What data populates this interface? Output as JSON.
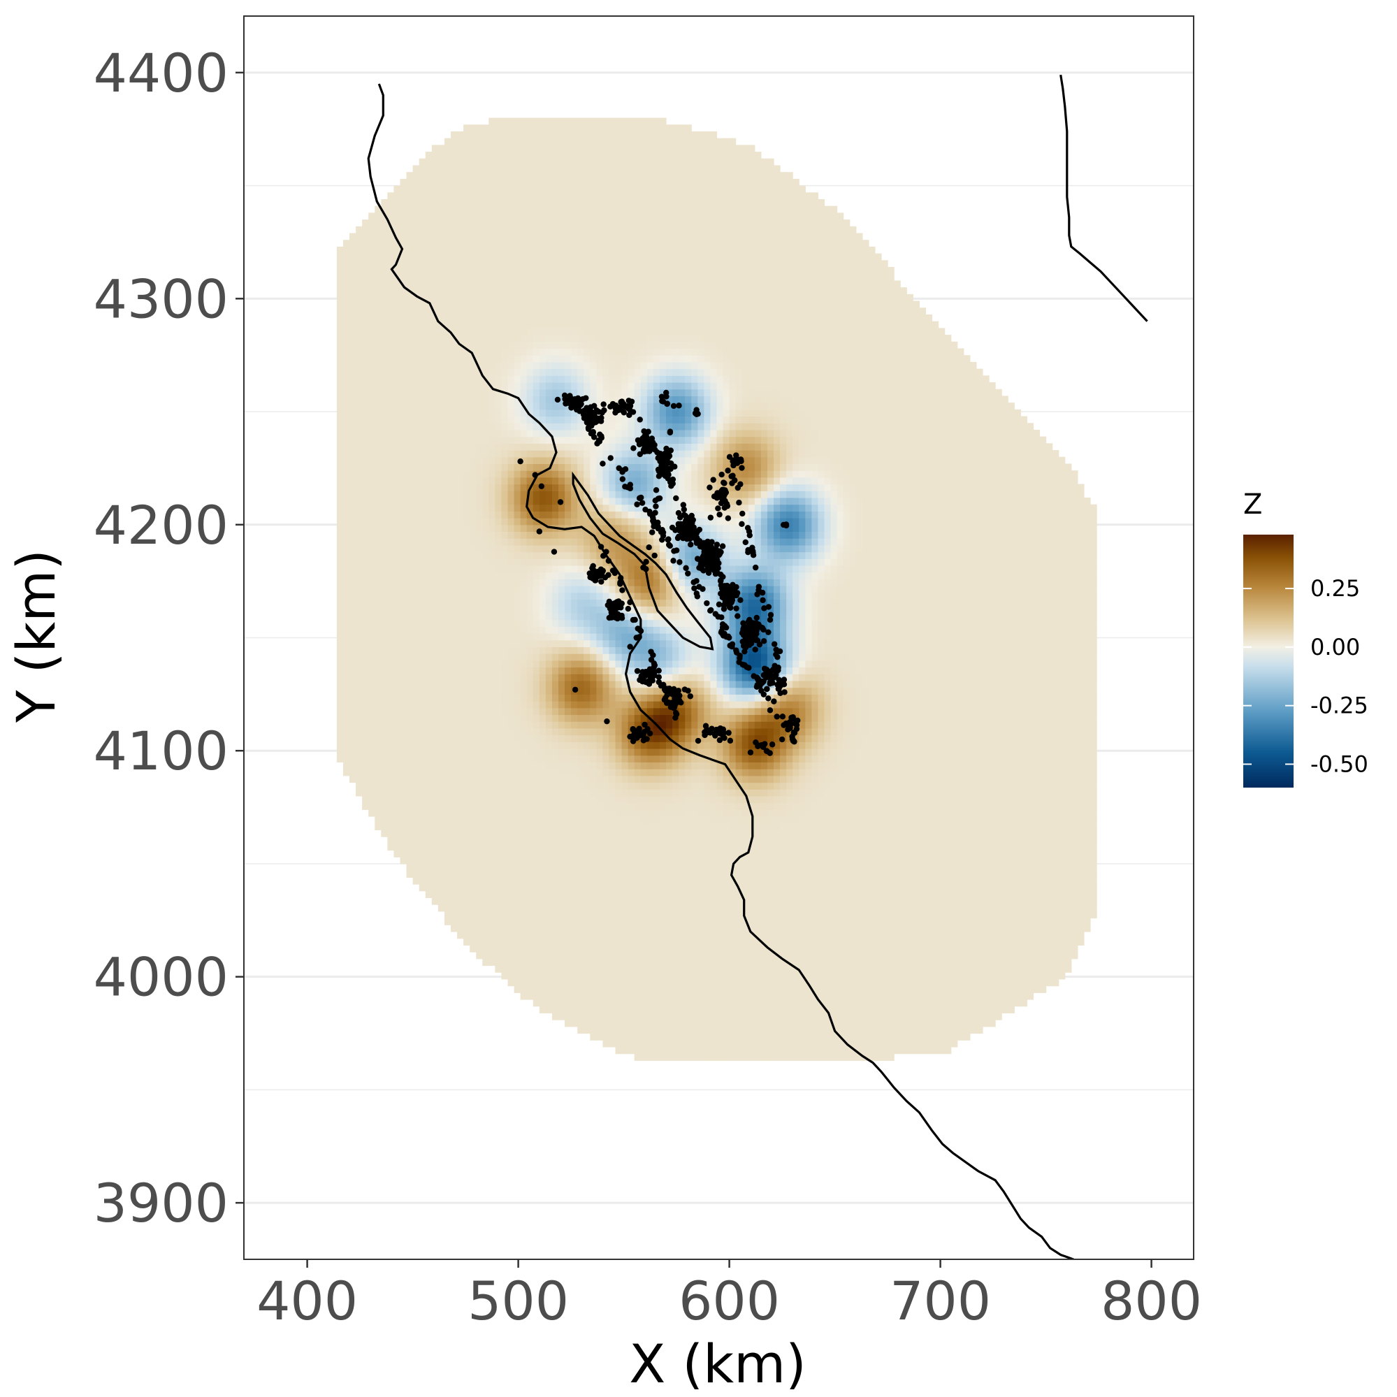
{
  "chart_data": {
    "type": "heatmap",
    "title": "",
    "xlabel": "X (km)",
    "ylabel": "Y (km)",
    "xlim": [
      370,
      820
    ],
    "ylim": [
      3875,
      4425
    ],
    "xticks": [
      400,
      500,
      600,
      700,
      800
    ],
    "xtick_labels": [
      "400",
      "500",
      "600",
      "700",
      "800"
    ],
    "yticks": [
      3900,
      4000,
      4100,
      4200,
      4300,
      4400
    ],
    "ytick_labels": [
      "3900",
      "4000",
      "4100",
      "4200",
      "4300",
      "4400"
    ],
    "grid": true,
    "legend": {
      "title": "Z",
      "position": "right",
      "breaks": [
        0.25,
        0,
        -0.25,
        -0.5
      ],
      "labels": [
        "0.25",
        "0.00",
        "-0.25",
        "-0.50"
      ],
      "range": [
        -0.6,
        0.48
      ],
      "colors": [
        "#002a5e",
        "#0d5a92",
        "#5b9bc4",
        "#c9dfec",
        "#f2efe4",
        "#dcc28f",
        "#b7853a",
        "#8a5206",
        "#5a2000"
      ]
    },
    "fill_base_color": "#e4dbc4",
    "domain_polygon": [
      [
        415,
        4322
      ],
      [
        444,
        4353
      ],
      [
        467,
        4372
      ],
      [
        480,
        4378
      ],
      [
        525,
        4381
      ],
      [
        565,
        4380
      ],
      [
        610,
        4368
      ],
      [
        652,
        4338
      ],
      [
        704,
        4284
      ],
      [
        760,
        4228
      ],
      [
        775,
        4205
      ],
      [
        775,
        4030
      ],
      [
        760,
        4000
      ],
      [
        700,
        3965
      ],
      [
        560,
        3962
      ],
      [
        530,
        3975
      ],
      [
        500,
        3992
      ],
      [
        470,
        4020
      ],
      [
        440,
        4055
      ],
      [
        415,
        4095
      ],
      [
        415,
        4322
      ]
    ],
    "anomalies": [
      {
        "x": 512,
        "y": 4212,
        "z": 0.34
      },
      {
        "x": 530,
        "y": 4128,
        "z": 0.3
      },
      {
        "x": 562,
        "y": 4108,
        "z": 0.32
      },
      {
        "x": 575,
        "y": 4118,
        "z": 0.28
      },
      {
        "x": 612,
        "y": 4103,
        "z": 0.34
      },
      {
        "x": 628,
        "y": 4118,
        "z": 0.24
      },
      {
        "x": 608,
        "y": 4225,
        "z": 0.22
      },
      {
        "x": 562,
        "y": 4175,
        "z": 0.28
      },
      {
        "x": 545,
        "y": 4195,
        "z": 0.18
      },
      {
        "x": 518,
        "y": 4255,
        "z": -0.18
      },
      {
        "x": 575,
        "y": 4250,
        "z": -0.33
      },
      {
        "x": 628,
        "y": 4200,
        "z": -0.38
      },
      {
        "x": 612,
        "y": 4165,
        "z": -0.42
      },
      {
        "x": 612,
        "y": 4138,
        "z": -0.5
      },
      {
        "x": 582,
        "y": 4185,
        "z": -0.28
      },
      {
        "x": 555,
        "y": 4218,
        "z": -0.26
      },
      {
        "x": 530,
        "y": 4165,
        "z": -0.14
      },
      {
        "x": 567,
        "y": 4140,
        "z": -0.2
      },
      {
        "x": 550,
        "y": 4152,
        "z": -0.22
      }
    ],
    "point_clusters": [
      {
        "x": 526,
        "y": 4254,
        "sx": 4,
        "sy": 2,
        "n": 40
      },
      {
        "x": 535,
        "y": 4248,
        "sx": 3,
        "sy": 3,
        "n": 35
      },
      {
        "x": 548,
        "y": 4252,
        "sx": 5,
        "sy": 2,
        "n": 25
      },
      {
        "x": 560,
        "y": 4236,
        "sx": 3,
        "sy": 3,
        "n": 40
      },
      {
        "x": 570,
        "y": 4226,
        "sx": 3,
        "sy": 4,
        "n": 40
      },
      {
        "x": 580,
        "y": 4198,
        "sx": 4,
        "sy": 4,
        "n": 70
      },
      {
        "x": 590,
        "y": 4185,
        "sx": 4,
        "sy": 5,
        "n": 80
      },
      {
        "x": 600,
        "y": 4168,
        "sx": 3,
        "sy": 4,
        "n": 60
      },
      {
        "x": 610,
        "y": 4152,
        "sx": 4,
        "sy": 5,
        "n": 70
      },
      {
        "x": 620,
        "y": 4132,
        "sx": 4,
        "sy": 4,
        "n": 40
      },
      {
        "x": 630,
        "y": 4112,
        "sx": 2,
        "sy": 3,
        "n": 20
      },
      {
        "x": 538,
        "y": 4178,
        "sx": 3,
        "sy": 3,
        "n": 30
      },
      {
        "x": 546,
        "y": 4162,
        "sx": 3,
        "sy": 4,
        "n": 35
      },
      {
        "x": 562,
        "y": 4132,
        "sx": 4,
        "sy": 3,
        "n": 30
      },
      {
        "x": 575,
        "y": 4124,
        "sx": 5,
        "sy": 3,
        "n": 30
      },
      {
        "x": 557,
        "y": 4108,
        "sx": 3,
        "sy": 3,
        "n": 25
      },
      {
        "x": 595,
        "y": 4108,
        "sx": 8,
        "sy": 3,
        "n": 25
      },
      {
        "x": 615,
        "y": 4102,
        "sx": 4,
        "sy": 2,
        "n": 12
      },
      {
        "x": 603,
        "y": 4228,
        "sx": 3,
        "sy": 3,
        "n": 10
      },
      {
        "x": 596,
        "y": 4212,
        "sx": 4,
        "sy": 5,
        "n": 30
      },
      {
        "x": 627,
        "y": 4200,
        "sx": 1,
        "sy": 1,
        "n": 3
      },
      {
        "x": 570,
        "y": 4255,
        "sx": 2,
        "sy": 2,
        "n": 8
      },
      {
        "x": 585,
        "y": 4250,
        "sx": 2,
        "sy": 2,
        "n": 4
      }
    ],
    "point_lines": [
      {
        "from": [
          525,
          4258
        ],
        "to": [
          633,
          4102
        ],
        "n": 120
      },
      {
        "from": [
          552,
          4255
        ],
        "to": [
          610,
          4150
        ],
        "n": 60
      },
      {
        "from": [
          575,
          4255
        ],
        "to": [
          560,
          4180
        ],
        "n": 25
      },
      {
        "from": [
          540,
          4190
        ],
        "to": [
          575,
          4115
        ],
        "n": 40
      },
      {
        "from": [
          600,
          4230
        ],
        "to": [
          628,
          4120
        ],
        "n": 40
      }
    ],
    "isolated_points": [
      [
        501,
        4228
      ],
      [
        508,
        4222
      ],
      [
        511,
        4217
      ],
      [
        520,
        4210
      ],
      [
        510,
        4197
      ],
      [
        527,
        4127
      ],
      [
        542,
        4113
      ],
      [
        556,
        4150
      ],
      [
        547,
        4165
      ],
      [
        517,
        4188
      ],
      [
        540,
        4227
      ],
      [
        532,
        4256
      ],
      [
        624,
        4144
      ],
      [
        625,
        4105
      ],
      [
        553,
        4146
      ]
    ],
    "coastline": [
      [
        434,
        4395
      ],
      [
        436,
        4390
      ],
      [
        436,
        4381
      ],
      [
        432,
        4372
      ],
      [
        429,
        4362
      ],
      [
        430,
        4354
      ],
      [
        433,
        4343
      ],
      [
        438,
        4335
      ],
      [
        442,
        4327
      ],
      [
        445,
        4322
      ],
      [
        442,
        4315
      ],
      [
        440,
        4313
      ],
      [
        443,
        4309
      ],
      [
        446,
        4305
      ],
      [
        452,
        4301
      ],
      [
        458,
        4298
      ],
      [
        462,
        4290
      ],
      [
        468,
        4285
      ],
      [
        472,
        4280
      ],
      [
        478,
        4276
      ],
      [
        483,
        4266
      ],
      [
        488,
        4260
      ],
      [
        495,
        4258
      ],
      [
        500,
        4256
      ],
      [
        505,
        4249
      ],
      [
        510,
        4245
      ],
      [
        516,
        4239
      ],
      [
        518,
        4232
      ],
      [
        515,
        4225
      ],
      [
        509,
        4222
      ],
      [
        505,
        4215
      ],
      [
        504,
        4208
      ],
      [
        507,
        4203
      ],
      [
        514,
        4199
      ],
      [
        522,
        4198
      ],
      [
        530,
        4199
      ],
      [
        536,
        4195
      ],
      [
        542,
        4186
      ],
      [
        548,
        4178
      ],
      [
        553,
        4168
      ],
      [
        558,
        4158
      ],
      [
        558,
        4150
      ],
      [
        553,
        4143
      ],
      [
        551,
        4134
      ],
      [
        553,
        4126
      ],
      [
        558,
        4118
      ],
      [
        565,
        4112
      ],
      [
        572,
        4105
      ],
      [
        578,
        4101
      ],
      [
        586,
        4098
      ],
      [
        592,
        4096
      ],
      [
        598,
        4094
      ],
      [
        603,
        4087
      ],
      [
        608,
        4080
      ],
      [
        611,
        4071
      ],
      [
        611,
        4062
      ],
      [
        609,
        4055
      ],
      [
        605,
        4053
      ],
      [
        602,
        4050
      ],
      [
        601,
        4045
      ],
      [
        604,
        4040
      ],
      [
        607,
        4034
      ],
      [
        607,
        4027
      ],
      [
        610,
        4020
      ],
      [
        618,
        4013
      ],
      [
        625,
        4008
      ],
      [
        633,
        4003
      ],
      [
        638,
        3996
      ],
      [
        642,
        3990
      ],
      [
        647,
        3984
      ],
      [
        650,
        3976
      ],
      [
        656,
        3970
      ],
      [
        663,
        3965
      ],
      [
        668,
        3962
      ],
      [
        672,
        3958
      ],
      [
        678,
        3951
      ],
      [
        684,
        3945
      ],
      [
        690,
        3940
      ],
      [
        696,
        3932
      ],
      [
        701,
        3926
      ],
      [
        706,
        3922
      ],
      [
        712,
        3918
      ],
      [
        718,
        3914
      ],
      [
        726,
        3910
      ],
      [
        730,
        3905
      ],
      [
        734,
        3899
      ],
      [
        738,
        3893
      ],
      [
        742,
        3889
      ],
      [
        748,
        3885
      ],
      [
        752,
        3880
      ],
      [
        757,
        3877
      ],
      [
        763,
        3875
      ],
      [
        767,
        3872
      ],
      [
        770,
        3867
      ],
      [
        773,
        3864
      ],
      [
        776,
        3862
      ],
      [
        779,
        3861
      ],
      [
        780,
        3858
      ],
      [
        783,
        3854
      ],
      [
        787,
        3852
      ],
      [
        791,
        3848
      ],
      [
        795,
        3846
      ],
      [
        797,
        3843
      ],
      [
        800,
        3840
      ],
      [
        804,
        3838
      ],
      [
        808,
        3834
      ]
    ],
    "bay_shoreline": [
      [
        526,
        4222
      ],
      [
        533,
        4213
      ],
      [
        538,
        4205
      ],
      [
        543,
        4200
      ],
      [
        548,
        4195
      ],
      [
        554,
        4191
      ],
      [
        560,
        4187
      ],
      [
        565,
        4183
      ],
      [
        570,
        4178
      ],
      [
        575,
        4170
      ],
      [
        580,
        4163
      ],
      [
        585,
        4157
      ],
      [
        591,
        4150
      ],
      [
        592,
        4145
      ],
      [
        586,
        4146
      ],
      [
        578,
        4150
      ],
      [
        572,
        4156
      ],
      [
        566,
        4162
      ],
      [
        562,
        4172
      ],
      [
        560,
        4182
      ],
      [
        555,
        4187
      ],
      [
        547,
        4192
      ],
      [
        540,
        4196
      ],
      [
        534,
        4203
      ],
      [
        529,
        4211
      ],
      [
        526,
        4218
      ],
      [
        526,
        4222
      ]
    ],
    "inland_line": [
      [
        757,
        4399
      ],
      [
        758,
        4393
      ],
      [
        759,
        4385
      ],
      [
        760,
        4374
      ],
      [
        760,
        4365
      ],
      [
        760,
        4355
      ],
      [
        760,
        4345
      ],
      [
        761,
        4336
      ],
      [
        761,
        4328
      ],
      [
        762,
        4323
      ],
      [
        766,
        4320
      ],
      [
        771,
        4316
      ],
      [
        776,
        4312
      ],
      [
        781,
        4307
      ],
      [
        786,
        4302
      ],
      [
        791,
        4297
      ],
      [
        795,
        4293
      ],
      [
        798,
        4290
      ]
    ]
  }
}
